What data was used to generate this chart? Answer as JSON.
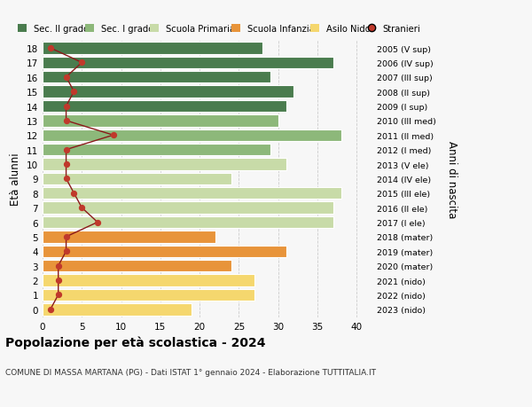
{
  "ages": [
    0,
    1,
    2,
    3,
    4,
    5,
    6,
    7,
    8,
    9,
    10,
    11,
    12,
    13,
    14,
    15,
    16,
    17,
    18
  ],
  "bar_values": [
    19,
    27,
    27,
    24,
    31,
    22,
    37,
    37,
    38,
    24,
    31,
    29,
    38,
    30,
    31,
    32,
    29,
    37,
    28
  ],
  "stranieri": [
    1,
    2,
    2,
    2,
    3,
    3,
    7,
    5,
    4,
    3,
    3,
    3,
    9,
    3,
    3,
    4,
    3,
    5,
    1
  ],
  "bar_colors": [
    "#f5d76e",
    "#f5d76e",
    "#f5d76e",
    "#e8943a",
    "#e8943a",
    "#e8943a",
    "#c8dba8",
    "#c8dba8",
    "#c8dba8",
    "#c8dba8",
    "#c8dba8",
    "#8db87a",
    "#8db87a",
    "#8db87a",
    "#4a7c4e",
    "#4a7c4e",
    "#4a7c4e",
    "#4a7c4e",
    "#4a7c4e"
  ],
  "right_labels": [
    "2023 (nido)",
    "2022 (nido)",
    "2021 (nido)",
    "2020 (mater)",
    "2019 (mater)",
    "2018 (mater)",
    "2017 (I ele)",
    "2016 (II ele)",
    "2015 (III ele)",
    "2014 (IV ele)",
    "2013 (V ele)",
    "2012 (I med)",
    "2011 (II med)",
    "2010 (III med)",
    "2009 (I sup)",
    "2008 (II sup)",
    "2007 (III sup)",
    "2006 (IV sup)",
    "2005 (V sup)"
  ],
  "title": "Popolazione per età scolastica - 2024",
  "subtitle": "COMUNE DI MASSA MARTANA (PG) - Dati ISTAT 1° gennaio 2024 - Elaborazione TUTTITALIA.IT",
  "ylabel": "Età alunni",
  "right_ylabel": "Anni di nascita",
  "xlim": [
    0,
    42
  ],
  "xticks": [
    0,
    5,
    10,
    15,
    20,
    25,
    30,
    35,
    40
  ],
  "legend_labels": [
    "Sec. II grado",
    "Sec. I grado",
    "Scuola Primaria",
    "Scuola Infanzia",
    "Asilo Nido",
    "Stranieri"
  ],
  "legend_colors": [
    "#4a7c4e",
    "#8db87a",
    "#c8dba8",
    "#e8943a",
    "#f5d76e",
    "#c0392b"
  ],
  "bg_color": "#f7f7f7",
  "grid_color": "#cccccc",
  "stranieri_line_color": "#8b1a1a",
  "stranieri_dot_color": "#c0392b"
}
